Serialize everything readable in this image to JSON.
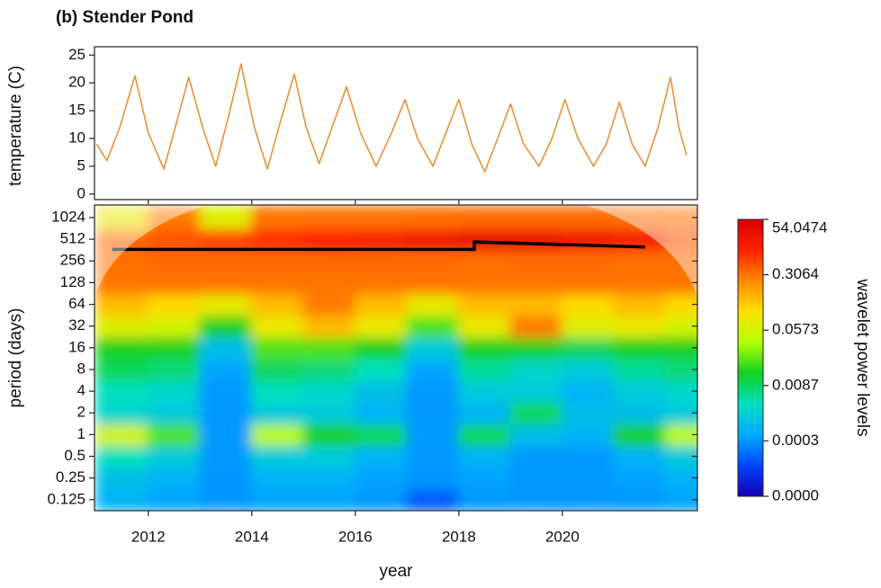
{
  "chart_data": [
    {
      "type": "line",
      "title": "(b) Stender Pond",
      "y_label": "temperature (C)",
      "color": "#e8913a",
      "xlim": [
        2010.96,
        2022.61
      ],
      "ylim": [
        -1,
        26.5
      ],
      "yticks": [
        0,
        5,
        10,
        15,
        20,
        25
      ],
      "x": [
        2011.0,
        2011.2,
        2011.45,
        2011.74,
        2012.0,
        2012.3,
        2012.55,
        2012.78,
        2013.05,
        2013.3,
        2013.55,
        2013.79,
        2014.05,
        2014.3,
        2014.55,
        2014.82,
        2015.05,
        2015.3,
        2015.55,
        2015.83,
        2016.1,
        2016.4,
        2016.7,
        2016.96,
        2017.2,
        2017.5,
        2017.75,
        2018.0,
        2018.25,
        2018.5,
        2018.75,
        2019.0,
        2019.25,
        2019.55,
        2019.8,
        2020.05,
        2020.3,
        2020.6,
        2020.85,
        2021.1,
        2021.35,
        2021.6,
        2021.85,
        2022.09,
        2022.25,
        2022.4
      ],
      "values": [
        9,
        6,
        12,
        21.3,
        11,
        4.5,
        13,
        21,
        12,
        5,
        14,
        23.4,
        12,
        4.5,
        13,
        21.6,
        12,
        5.5,
        12,
        19.3,
        11,
        5,
        11,
        17,
        10,
        5,
        11,
        17,
        9,
        4,
        10,
        16.2,
        9,
        5,
        10,
        17,
        10,
        5,
        9,
        16.5,
        9,
        5,
        12,
        21,
        12,
        7
      ]
    },
    {
      "type": "heatmap",
      "x_label": "year",
      "y_label": "period (days)",
      "log_y": true,
      "xlim": [
        2010.96,
        2022.61
      ],
      "xticks": [
        2012,
        2014,
        2016,
        2018,
        2020
      ],
      "ylim": [
        0.088,
        1530
      ],
      "yticks": [
        0.125,
        0.25,
        0.5,
        1,
        2,
        4,
        8,
        16,
        32,
        64,
        128,
        256,
        512,
        1024
      ],
      "x": [
        2011.5,
        2012.5,
        2013.5,
        2014.5,
        2015.5,
        2016.5,
        2017.5,
        2018.5,
        2019.5,
        2020.5,
        2021.5,
        2022.5
      ],
      "periods": [
        0.125,
        0.25,
        0.5,
        1,
        2,
        4,
        8,
        16,
        32,
        64,
        128,
        256,
        512,
        1024
      ],
      "z": [
        [
          0.002,
          0.001,
          0.0003,
          0.001,
          0.001,
          0.0005,
          0.0002,
          0.0005,
          0.0003,
          0.0003,
          0.0005,
          0.001
        ],
        [
          0.003,
          0.002,
          0.0003,
          0.002,
          0.002,
          0.001,
          0.0003,
          0.001,
          0.0004,
          0.0004,
          0.001,
          0.002
        ],
        [
          0.006,
          0.004,
          0.0004,
          0.004,
          0.004,
          0.002,
          0.0004,
          0.002,
          0.0005,
          0.0005,
          0.002,
          0.004
        ],
        [
          0.06,
          0.03,
          0.0005,
          0.05,
          0.02,
          0.01,
          0.0005,
          0.01,
          0.003,
          0.002,
          0.02,
          0.05
        ],
        [
          0.005,
          0.004,
          0.0004,
          0.004,
          0.004,
          0.002,
          0.0004,
          0.002,
          0.01,
          0.003,
          0.003,
          0.004
        ],
        [
          0.006,
          0.005,
          0.0005,
          0.006,
          0.005,
          0.003,
          0.0005,
          0.004,
          0.004,
          0.002,
          0.004,
          0.005
        ],
        [
          0.01,
          0.008,
          0.001,
          0.009,
          0.008,
          0.006,
          0.001,
          0.007,
          0.005,
          0.004,
          0.007,
          0.008
        ],
        [
          0.02,
          0.02,
          0.003,
          0.03,
          0.03,
          0.02,
          0.004,
          0.02,
          0.02,
          0.01,
          0.02,
          0.02
        ],
        [
          0.08,
          0.06,
          0.02,
          0.1,
          0.2,
          0.1,
          0.03,
          0.1,
          0.3,
          0.08,
          0.1,
          0.06
        ],
        [
          0.2,
          0.15,
          0.1,
          0.2,
          0.3,
          0.2,
          0.1,
          0.2,
          0.2,
          0.15,
          0.2,
          0.15
        ],
        [
          0.4,
          0.5,
          0.4,
          0.6,
          0.5,
          0.5,
          0.4,
          0.5,
          0.6,
          0.5,
          0.5,
          0.4
        ],
        [
          2,
          3,
          3,
          3,
          3,
          3,
          3,
          2,
          3,
          3,
          2,
          2
        ],
        [
          5,
          10,
          15,
          20,
          25,
          30,
          35,
          40,
          40,
          35,
          30,
          10
        ],
        [
          0.1,
          0.3,
          0.08,
          0.5,
          1,
          1,
          2,
          3,
          3,
          3,
          2,
          0.5
        ]
      ],
      "ridge": {
        "color": "#000000",
        "x": [
          2011.3,
          2018.3,
          2018.3,
          2021.6
        ],
        "values": [
          370,
          370,
          470,
          400
        ]
      },
      "colorbar": {
        "label": "wavelet power levels",
        "ticks": [
          {
            "value": 0,
            "label": "0.0000"
          },
          0.0003,
          0.0087,
          0.0573,
          0.3064,
          54.0474
        ],
        "colorscale": [
          "#1400b4",
          "#0046ff",
          "#00aaff",
          "#00e0c0",
          "#10d020",
          "#b0ff00",
          "#ffe000",
          "#ff8a00",
          "#ff2000",
          "#d80000"
        ]
      }
    }
  ]
}
